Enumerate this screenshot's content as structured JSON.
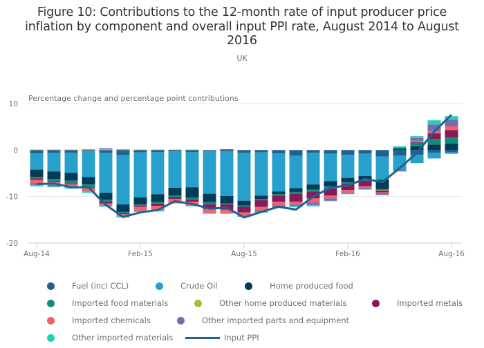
{
  "header": {
    "title": "Figure 10: Contributions to the 12-month rate of input producer price inflation by component and overall input PPI rate, August 2014 to August 2016",
    "subtitle": "UK"
  },
  "chart_data": {
    "type": "bar",
    "stacked": true,
    "title": "Figure 10: Contributions to the 12-month rate of input producer price inflation by component and overall input PPI rate, August 2014 to August 2016",
    "subtitle": "UK",
    "ylabel": "Percentage change and percentage point contributions",
    "xlabel": "",
    "ylim": [
      -20,
      10
    ],
    "yticks": [
      10,
      0,
      -10,
      -20
    ],
    "grid": true,
    "legend_position": "bottom",
    "x_tick_labels": [
      "Aug-14",
      "Feb-15",
      "Aug-15",
      "Feb-16",
      "Aug-16"
    ],
    "x_tick_indices": [
      0,
      6,
      12,
      18,
      24
    ],
    "categories": [
      "Aug-14",
      "Sep-14",
      "Oct-14",
      "Nov-14",
      "Dec-14",
      "Jan-15",
      "Feb-15",
      "Mar-15",
      "Apr-15",
      "May-15",
      "Jun-15",
      "Jul-15",
      "Aug-15",
      "Sep-15",
      "Oct-15",
      "Nov-15",
      "Dec-15",
      "Jan-16",
      "Feb-16",
      "Mar-16",
      "Apr-16",
      "May-16",
      "Jun-16",
      "Jul-16",
      "Aug-16"
    ],
    "series": [
      {
        "name": "Fuel (incl CCL)",
        "color": "#206095",
        "values": [
          -0.7,
          -0.6,
          -0.6,
          -0.2,
          -0.6,
          -1.1,
          -0.5,
          -0.4,
          -0.3,
          -0.4,
          -0.2,
          -0.3,
          -0.6,
          -0.5,
          -0.7,
          -1.2,
          -0.6,
          -0.8,
          -1.0,
          -0.8,
          -1.4,
          -1.2,
          -1.0,
          -0.6,
          -0.5
        ]
      },
      {
        "name": "Crude Oil",
        "color": "#27a0cc",
        "values": [
          -3.5,
          -4.0,
          -4.3,
          -5.6,
          -8.6,
          -10.6,
          -9.7,
          -9.1,
          -7.8,
          -7.6,
          -9.2,
          -9.6,
          -10.3,
          -9.3,
          -8.2,
          -7.0,
          -6.8,
          -5.9,
          -5.0,
          -4.8,
          -5.0,
          -3.2,
          -1.8,
          -1.2,
          -0.3
        ]
      },
      {
        "name": "Home produced food",
        "color": "#003c57",
        "values": [
          -1.6,
          -1.6,
          -1.7,
          -1.6,
          -1.5,
          -1.6,
          -1.5,
          -1.7,
          -1.7,
          -2.2,
          -1.8,
          -1.6,
          -1.0,
          -0.7,
          -0.6,
          -0.8,
          -1.1,
          -1.1,
          -0.9,
          -0.8,
          -2.0,
          0.3,
          0.8,
          1.2,
          1.4
        ]
      },
      {
        "name": "Imported food materials",
        "color": "#118c7b",
        "values": [
          -0.3,
          -0.5,
          -0.6,
          -0.6,
          -0.4,
          -0.3,
          -0.3,
          -0.3,
          -0.3,
          -0.4,
          -0.5,
          -0.2,
          -0.3,
          -0.3,
          -0.3,
          -0.4,
          -0.4,
          -0.5,
          -0.3,
          -0.2,
          -0.2,
          0.2,
          0.8,
          1.2,
          1.3
        ]
      },
      {
        "name": "Other home produced materials",
        "color": "#a8bd3a",
        "values": [
          0.1,
          0.1,
          0.1,
          0.2,
          0.2,
          0.2,
          0.1,
          0.1,
          0.1,
          0.1,
          0.0,
          0.0,
          0.0,
          0.0,
          0.0,
          0.0,
          0.0,
          0.0,
          0.0,
          0.0,
          -0.1,
          0.0,
          0.0,
          0.0,
          0.0
        ]
      },
      {
        "name": "Imported metals",
        "color": "#871a5b",
        "values": [
          -0.3,
          -0.2,
          -0.2,
          -0.2,
          -0.4,
          -0.2,
          -0.2,
          -0.5,
          -0.4,
          -0.5,
          -1.0,
          -1.1,
          -1.2,
          -1.4,
          -1.3,
          -1.7,
          -1.5,
          -1.5,
          -1.4,
          -1.2,
          -0.4,
          -0.1,
          0.1,
          1.2,
          1.6
        ]
      },
      {
        "name": "Imported chemicals",
        "color": "#f66068",
        "values": [
          -0.7,
          -0.6,
          -0.6,
          -0.6,
          -0.5,
          -0.5,
          -0.8,
          -0.9,
          -0.9,
          -0.9,
          -0.8,
          -0.8,
          -0.8,
          -0.8,
          -0.8,
          -0.6,
          -0.9,
          -0.6,
          -0.6,
          -0.3,
          -0.2,
          -0.1,
          0.3,
          0.5,
          0.8
        ]
      },
      {
        "name": "Other imported parts and equipment",
        "color": "#746cb1",
        "values": [
          -0.4,
          -0.3,
          -0.1,
          -0.1,
          0.2,
          0.0,
          -0.1,
          -0.1,
          0.0,
          0.0,
          -0.1,
          0.2,
          -0.1,
          -0.3,
          -0.3,
          -0.3,
          -0.5,
          -0.5,
          -0.2,
          -0.3,
          -0.3,
          0.1,
          0.6,
          1.4,
          1.4
        ]
      },
      {
        "name": "Other imported materials",
        "color": "#22d0b6",
        "values": [
          -0.3,
          -0.2,
          -0.2,
          -0.3,
          -0.2,
          -0.2,
          -0.2,
          -0.2,
          -0.1,
          -0.1,
          -0.1,
          -0.1,
          -0.1,
          -0.2,
          -0.2,
          -0.3,
          -0.3,
          -0.1,
          -0.1,
          -0.1,
          -0.1,
          0.2,
          0.4,
          0.9,
          0.8
        ]
      },
      {
        "name": "Input PPI",
        "type": "line",
        "color": "#206095",
        "values": [
          -7.3,
          -7.2,
          -8.0,
          -8.0,
          -11.8,
          -14.4,
          -13.4,
          -12.9,
          -11.0,
          -11.6,
          -12.6,
          -12.4,
          -14.5,
          -13.3,
          -12.2,
          -12.8,
          -10.0,
          -8.1,
          -7.6,
          -6.2,
          -6.9,
          -3.9,
          -0.6,
          4.0,
          7.6
        ]
      }
    ]
  }
}
